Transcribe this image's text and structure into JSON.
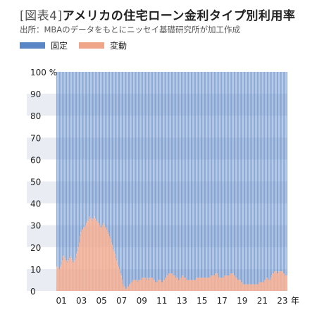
{
  "title_prefix": "[図表4]",
  "title_main": "アメリカの住宅ローン金利タイプ別利用率",
  "subtitle": "出所：MBAのデータをもとにニッセイ基礎研究所が加工作成",
  "colors": {
    "fixed": "#5b86c6",
    "variable": "#eea58a",
    "stripe": "#e9edf3"
  },
  "chart_data": {
    "type": "bar",
    "stacked": true,
    "ylim": [
      0,
      100
    ],
    "yticks": [
      "0",
      "10",
      "20",
      "30",
      "40",
      "50",
      "60",
      "70",
      "80",
      "90",
      "100 %"
    ],
    "xticks": [
      "01",
      "03",
      "05",
      "07",
      "09",
      "11",
      "13",
      "15",
      "17",
      "19",
      "21",
      "23"
    ],
    "xunit": "年",
    "x_range": [
      "2001",
      "2023"
    ],
    "series": [
      {
        "name": "固定",
        "values": "100 - 変動 for each month"
      },
      {
        "name": "変動",
        "values": [
          11,
          11,
          10,
          10,
          11,
          12,
          14,
          16,
          16,
          15,
          14,
          14,
          13,
          14,
          15,
          16,
          15,
          14,
          13,
          13,
          14,
          15,
          17,
          18,
          20,
          22,
          25,
          27,
          28,
          28,
          29,
          29,
          30,
          31,
          32,
          32,
          33,
          34,
          33,
          32,
          33,
          33,
          34,
          33,
          32,
          32,
          31,
          31,
          30,
          29,
          29,
          30,
          31,
          30,
          29,
          29,
          28,
          27,
          26,
          25,
          24,
          22,
          21,
          19,
          18,
          17,
          15,
          14,
          12,
          11,
          10,
          8,
          7,
          5,
          3,
          2,
          2,
          1,
          1,
          2,
          2,
          3,
          3,
          4,
          4,
          5,
          5,
          5,
          5,
          5,
          4,
          5,
          5,
          5,
          5,
          6,
          6,
          6,
          6,
          6,
          5,
          6,
          6,
          5,
          6,
          6,
          6,
          6,
          5,
          5,
          4,
          4,
          4,
          5,
          5,
          5,
          5,
          4,
          4,
          5,
          5,
          6,
          6,
          7,
          7,
          8,
          8,
          8,
          8,
          8,
          7,
          7,
          7,
          6,
          6,
          6,
          5,
          5,
          6,
          6,
          7,
          7,
          6,
          6,
          6,
          5,
          5,
          5,
          5,
          5,
          5,
          5,
          5,
          5,
          5,
          5,
          6,
          6,
          6,
          6,
          6,
          6,
          6,
          6,
          6,
          6,
          6,
          6,
          6,
          6,
          6,
          6,
          7,
          7,
          7,
          7,
          7,
          8,
          8,
          8,
          7,
          6,
          6,
          6,
          6,
          6,
          6,
          7,
          7,
          7,
          7,
          7,
          7,
          7,
          8,
          8,
          8,
          8,
          7,
          7,
          6,
          6,
          5,
          5,
          5,
          5,
          4,
          4,
          3,
          3,
          3,
          3,
          3,
          3,
          3,
          3,
          3,
          3,
          3,
          3,
          3,
          3,
          3,
          3,
          3,
          3,
          4,
          4,
          4,
          4,
          4,
          4,
          5,
          5,
          6,
          6,
          5,
          5,
          5,
          6,
          7,
          8,
          8,
          9,
          9,
          9,
          8,
          8,
          9,
          9,
          9,
          9,
          9,
          8,
          8,
          7,
          7,
          7
        ]
      }
    ]
  }
}
